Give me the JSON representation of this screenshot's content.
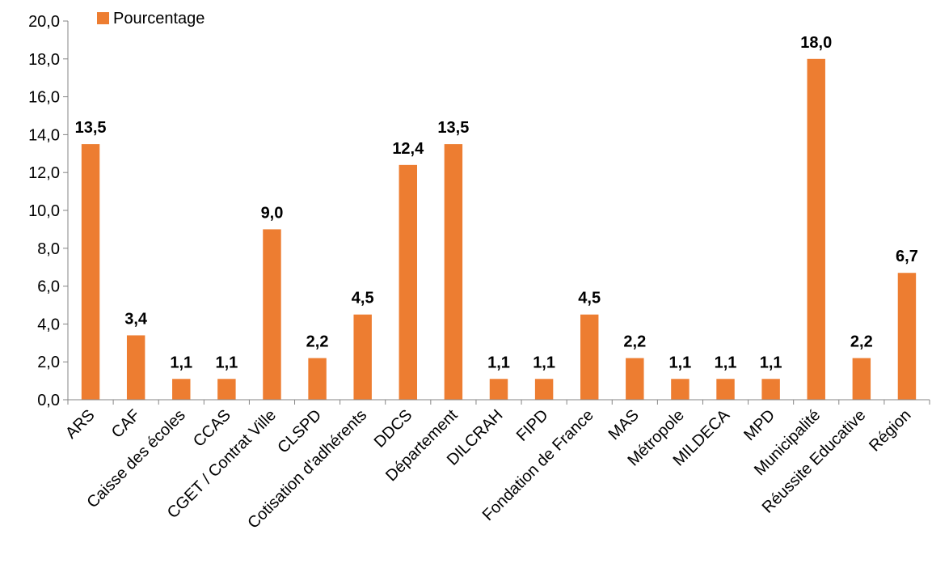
{
  "chart_data": {
    "type": "bar",
    "categories": [
      "ARS",
      "CAF",
      "Caisse des écoles",
      "CCAS",
      "CGET / Contrat Ville",
      "CLSPD",
      "Cotisation d'adhérents",
      "DDCS",
      "Département",
      "DILCRAH",
      "FIPD",
      "Fondation de France",
      "MAS",
      "Métropole",
      "MILDECA",
      "MPD",
      "Municipalité",
      "Réussite Educative",
      "Région"
    ],
    "series": [
      {
        "name": "Pourcentage",
        "values": [
          13.5,
          3.4,
          1.1,
          1.1,
          9.0,
          2.2,
          4.5,
          12.4,
          13.5,
          1.1,
          1.1,
          4.5,
          2.2,
          1.1,
          1.1,
          1.1,
          18.0,
          2.2,
          6.7
        ]
      }
    ],
    "data_labels": [
      "13,5",
      "3,4",
      "1,1",
      "1,1",
      "9,0",
      "2,2",
      "4,5",
      "12,4",
      "13,5",
      "1,1",
      "1,1",
      "4,5",
      "2,2",
      "1,1",
      "1,1",
      "1,1",
      "18,0",
      "2,2",
      "6,7"
    ],
    "ylim": [
      0,
      20
    ],
    "yticks": [
      0,
      2,
      4,
      6,
      8,
      10,
      12,
      14,
      16,
      18,
      20
    ],
    "ytick_labels": [
      "0,0",
      "2,0",
      "4,0",
      "6,0",
      "8,0",
      "10,0",
      "12,0",
      "14,0",
      "16,0",
      "18,0",
      "20,0"
    ],
    "legend_position": "top-left",
    "grid": false,
    "bar_color": "#ED7D31"
  }
}
